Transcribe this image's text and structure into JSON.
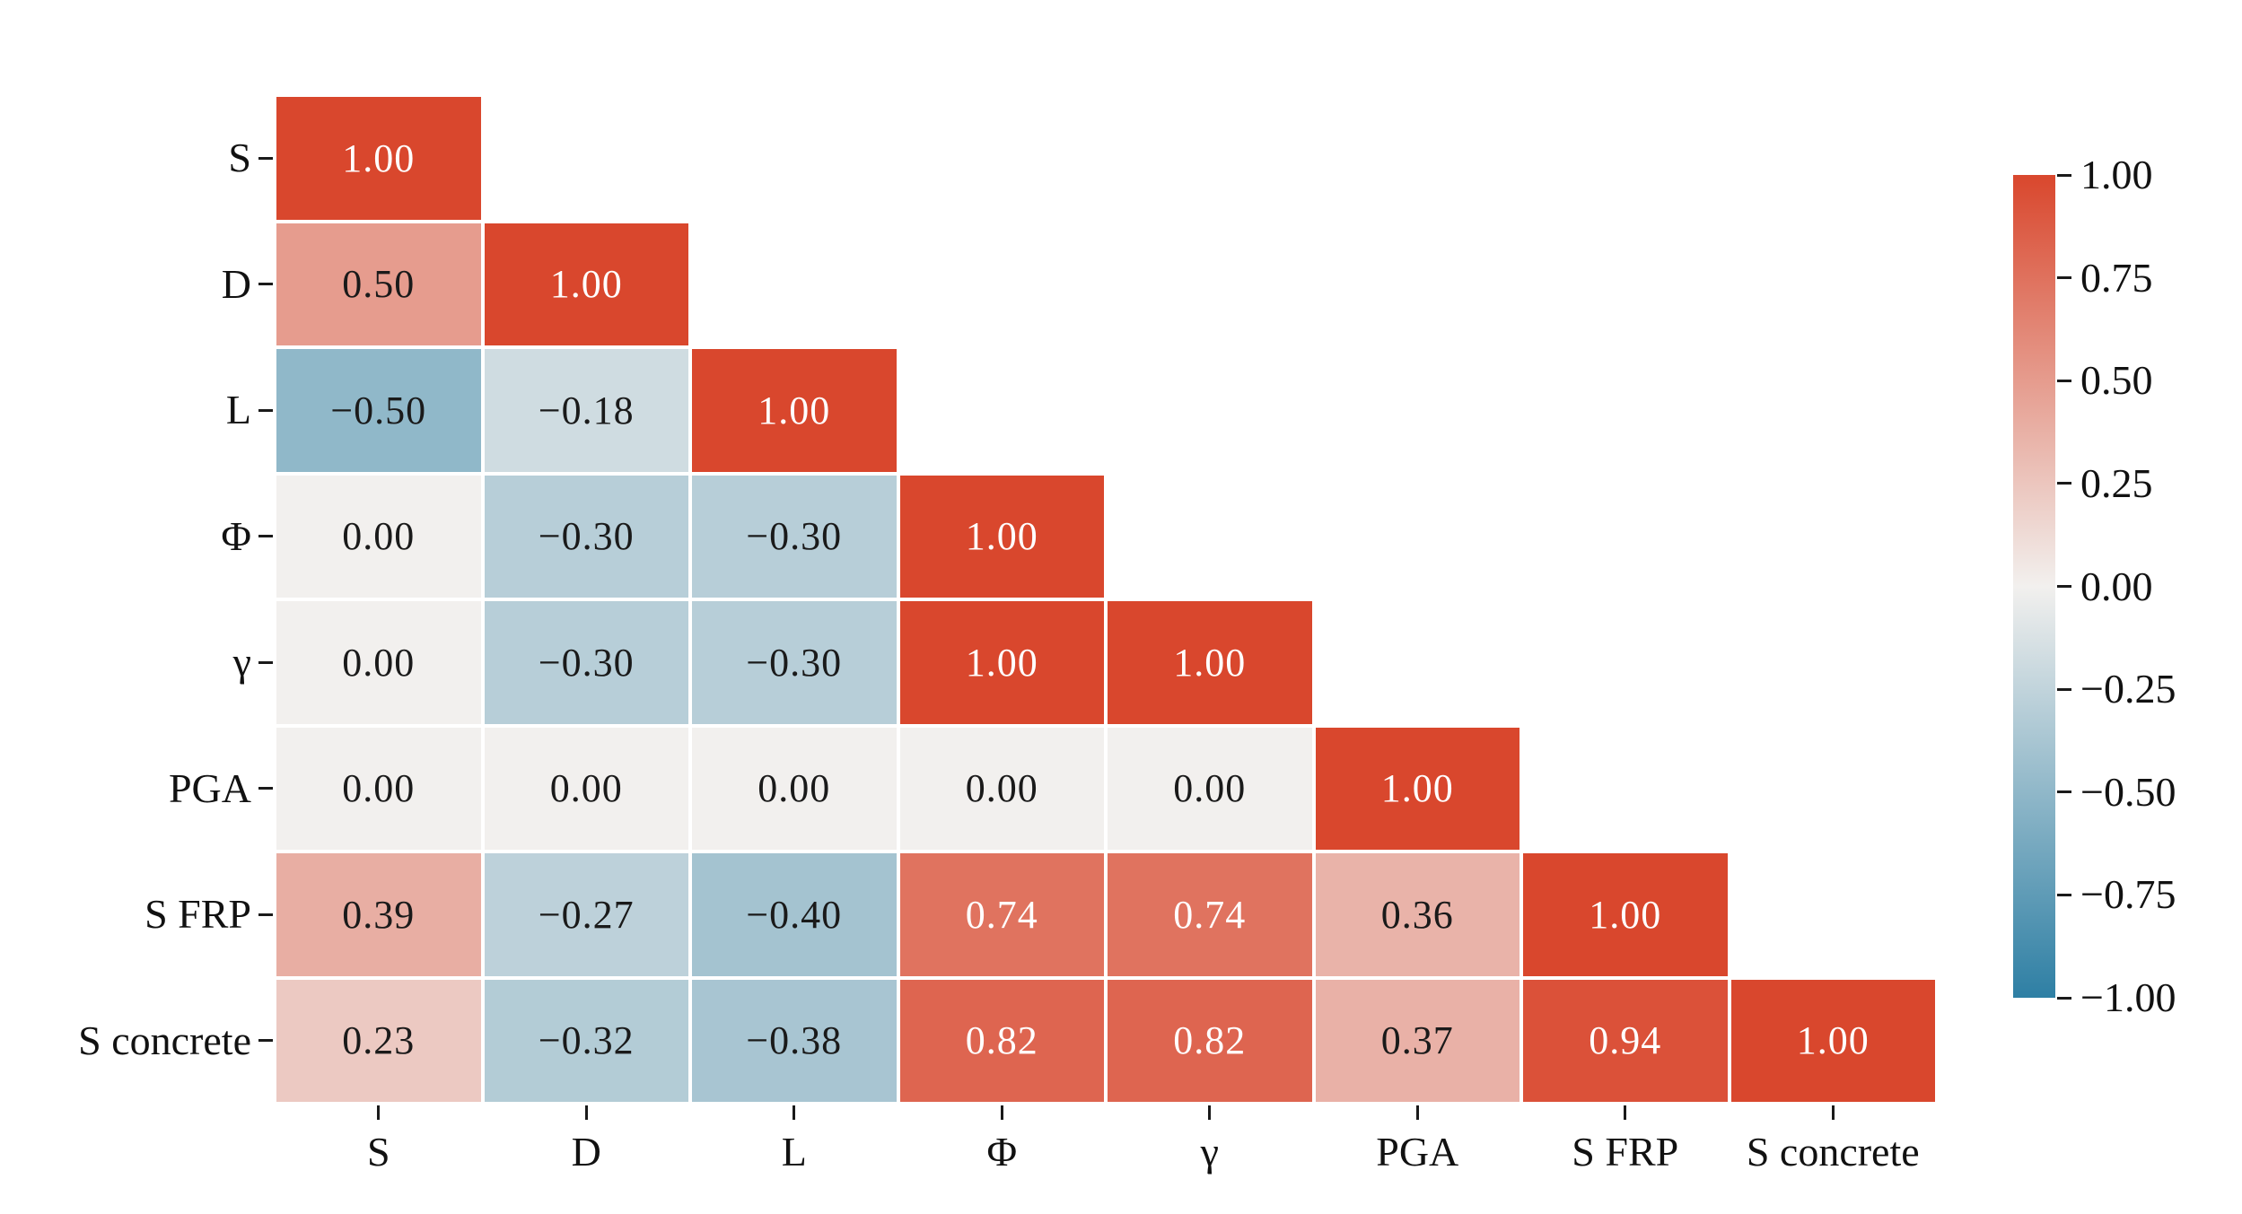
{
  "figure": {
    "background": "#ffffff",
    "text_color": "#111111"
  },
  "chart_data": {
    "type": "heatmap",
    "subtype": "correlation-matrix-lower-triangle",
    "title": "",
    "categories": [
      "S",
      "D",
      "L",
      "Φ",
      "γ",
      "PGA",
      "S FRP",
      "S concrete"
    ],
    "matrix": [
      [
        1.0
      ],
      [
        0.5,
        1.0
      ],
      [
        -0.5,
        -0.18,
        1.0
      ],
      [
        0.0,
        -0.3,
        -0.3,
        1.0
      ],
      [
        0.0,
        -0.3,
        -0.3,
        1.0,
        1.0
      ],
      [
        0.0,
        0.0,
        0.0,
        0.0,
        0.0,
        1.0
      ],
      [
        0.39,
        -0.27,
        -0.4,
        0.74,
        0.74,
        0.36,
        1.0
      ],
      [
        0.23,
        -0.32,
        -0.38,
        0.82,
        0.82,
        0.37,
        0.94,
        1.0
      ]
    ],
    "value_decimals": 2,
    "annotations_on": true,
    "grid": false,
    "legend": null,
    "colormap": {
      "negative_end": "#2e7fa4",
      "zero": "#f2f0ee",
      "positive_end": "#d9472d",
      "dark_cell_text": "#ffffff",
      "light_cell_text": "#1a1a1a"
    },
    "value_range": [
      -1,
      1
    ],
    "colorbar": {
      "position": "right",
      "min": -1.0,
      "max": 1.0,
      "tick_step": 0.25,
      "tick_labels": [
        "1.00",
        "0.75",
        "0.50",
        "0.25",
        "0.00",
        "−0.25",
        "−0.50",
        "−0.75",
        "−1.00"
      ]
    }
  }
}
